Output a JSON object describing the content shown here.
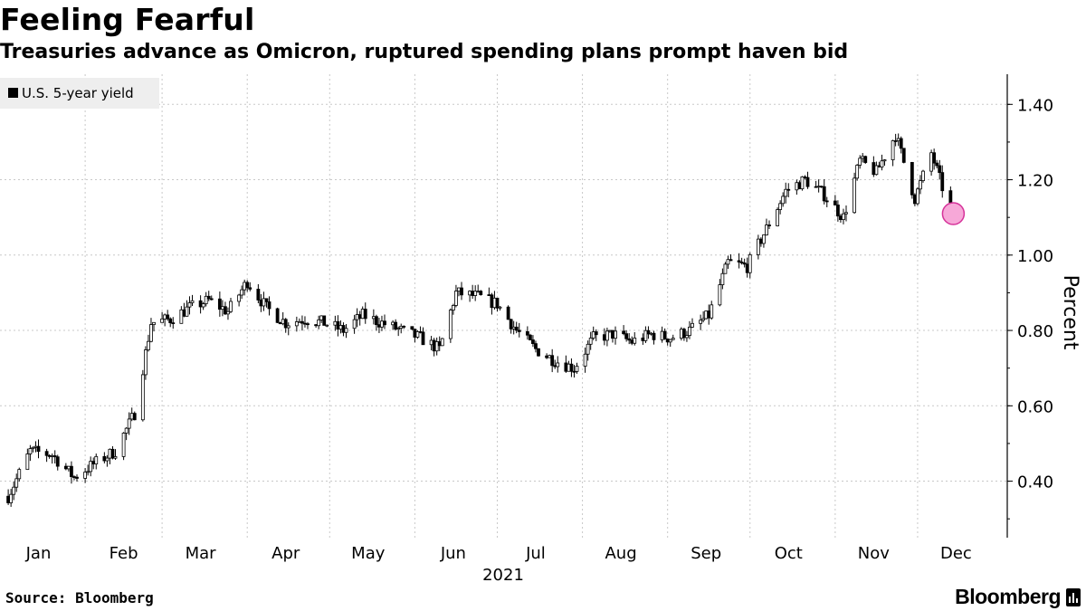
{
  "header": {
    "title": "Feeling Fearful",
    "subtitle": "Treasuries advance as Omicron, ruptured spending plans prompt haven bid"
  },
  "legend": {
    "label": "U.S. 5-year yield",
    "color": "#000000"
  },
  "footer": {
    "source": "Source: Bloomberg",
    "brand": "Bloomberg"
  },
  "colors": {
    "candle": "#000000",
    "highlight_fill": "#f7a8d8",
    "highlight_stroke": "#d6339a",
    "grid": "#c8c8c8"
  },
  "chart_data": {
    "type": "line",
    "title": "Feeling Fearful",
    "subtitle": "Treasuries advance as Omicron, ruptured spending plans prompt haven bid",
    "xlabel": "2021",
    "ylabel": "Percent",
    "ylim": [
      0.25,
      1.48
    ],
    "yticks": [
      0.4,
      0.6,
      0.8,
      1.0,
      1.2,
      1.4
    ],
    "ytick_labels": [
      "0.40",
      "0.60",
      "0.80",
      "1.00",
      "1.20",
      "1.40"
    ],
    "x_labels": [
      "Jan",
      "Feb",
      "Mar",
      "Apr",
      "May",
      "Jun",
      "Jul",
      "Aug",
      "Sep",
      "Oct",
      "Nov",
      "Dec"
    ],
    "year_label": "2021",
    "grid": true,
    "legend_position": "top-left",
    "series": [
      {
        "name": "U.S. 5-year yield",
        "x": [
          "2021-01-04",
          "2021-01-12",
          "2021-01-20",
          "2021-01-28",
          "2021-02-05",
          "2021-02-12",
          "2021-02-19",
          "2021-02-25",
          "2021-03-04",
          "2021-03-11",
          "2021-03-18",
          "2021-03-25",
          "2021-04-01",
          "2021-04-08",
          "2021-04-15",
          "2021-04-22",
          "2021-04-29",
          "2021-05-06",
          "2021-05-13",
          "2021-05-20",
          "2021-05-27",
          "2021-06-03",
          "2021-06-10",
          "2021-06-16",
          "2021-06-24",
          "2021-07-01",
          "2021-07-08",
          "2021-07-15",
          "2021-07-22",
          "2021-07-29",
          "2021-08-05",
          "2021-08-12",
          "2021-08-19",
          "2021-08-26",
          "2021-09-02",
          "2021-09-09",
          "2021-09-16",
          "2021-09-23",
          "2021-09-30",
          "2021-10-07",
          "2021-10-14",
          "2021-10-21",
          "2021-10-28",
          "2021-11-04",
          "2021-11-10",
          "2021-11-16",
          "2021-11-23",
          "2021-11-30",
          "2021-12-06",
          "2021-12-10",
          "2021-12-14"
        ],
        "values": [
          0.36,
          0.48,
          0.47,
          0.41,
          0.45,
          0.48,
          0.58,
          0.82,
          0.83,
          0.86,
          0.88,
          0.85,
          0.93,
          0.86,
          0.82,
          0.83,
          0.82,
          0.8,
          0.84,
          0.82,
          0.8,
          0.78,
          0.75,
          0.9,
          0.89,
          0.87,
          0.8,
          0.75,
          0.72,
          0.7,
          0.78,
          0.79,
          0.77,
          0.79,
          0.78,
          0.8,
          0.84,
          0.98,
          0.97,
          1.07,
          1.17,
          1.2,
          1.16,
          1.1,
          1.25,
          1.22,
          1.32,
          1.15,
          1.27,
          1.18,
          1.11
        ]
      }
    ],
    "highlight": {
      "x": "2021-12-14",
      "value": 1.11
    }
  }
}
